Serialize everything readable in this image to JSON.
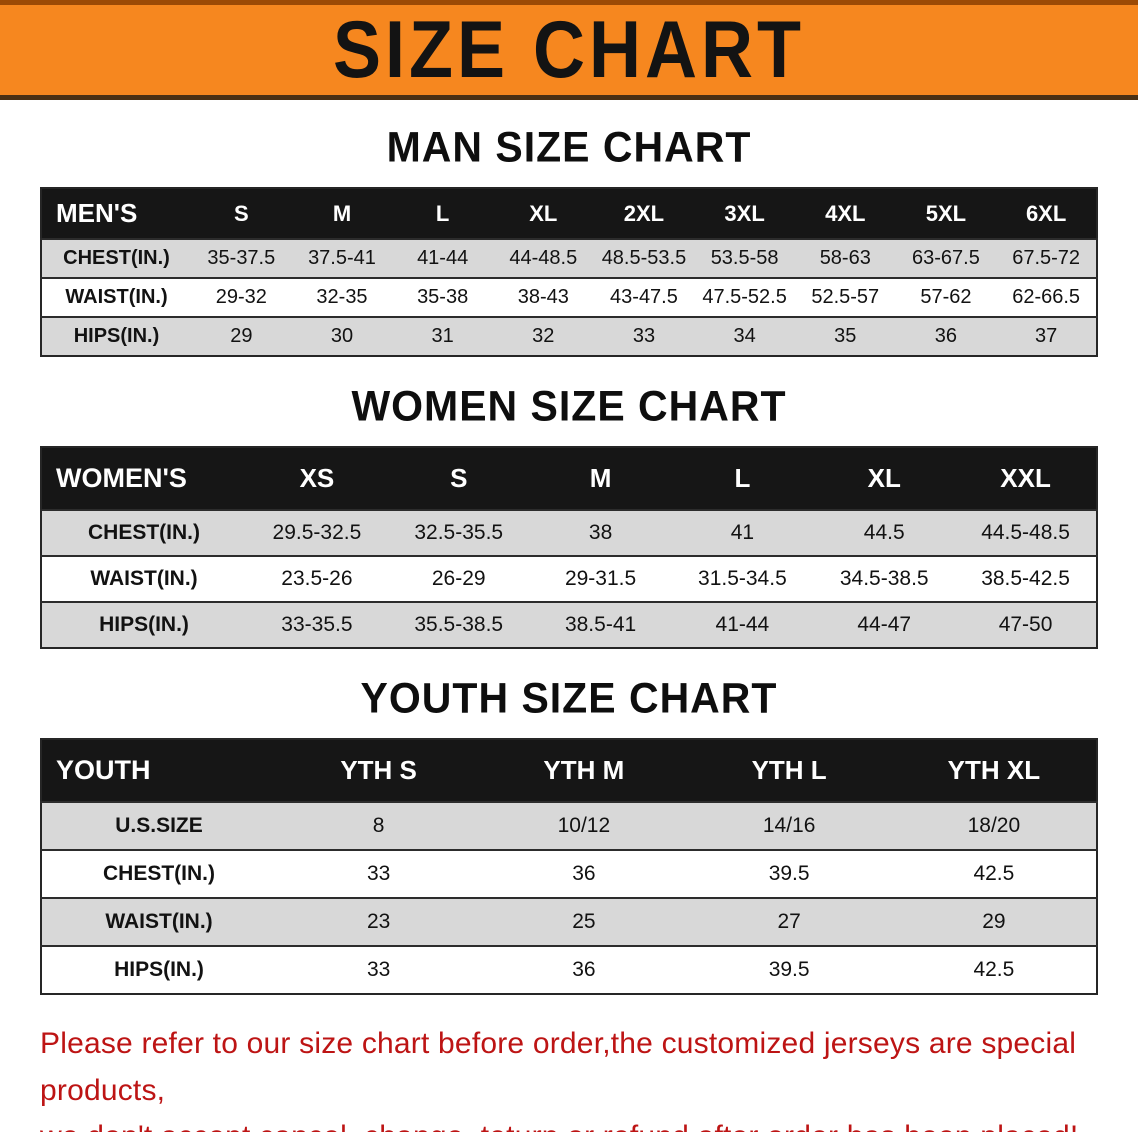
{
  "banner": {
    "title": "SIZE CHART",
    "bg_color": "#f6871f",
    "text_color": "#131313"
  },
  "colors": {
    "table_header_bg": "#161616",
    "table_header_text": "#ffffff",
    "row_stripe_gray": "#d8d8d8",
    "footer_text_red": "#bd1414"
  },
  "men": {
    "heading": "MAN SIZE CHART",
    "header": [
      "MEN'S",
      "S",
      "M",
      "L",
      "XL",
      "2XL",
      "3XL",
      "4XL",
      "5XL",
      "6XL"
    ],
    "rows": [
      [
        "CHEST(IN.)",
        "35-37.5",
        "37.5-41",
        "41-44",
        "44-48.5",
        "48.5-53.5",
        "53.5-58",
        "58-63",
        "63-67.5",
        "67.5-72"
      ],
      [
        "WAIST(IN.)",
        "29-32",
        "32-35",
        "35-38",
        "38-43",
        "43-47.5",
        "47.5-52.5",
        "52.5-57",
        "57-62",
        "62-66.5"
      ],
      [
        "HIPS(IN.)",
        "29",
        "30",
        "31",
        "32",
        "33",
        "34",
        "35",
        "36",
        "37"
      ]
    ]
  },
  "women": {
    "heading": "WOMEN SIZE CHART",
    "header": [
      "WOMEN'S",
      "XS",
      "S",
      "M",
      "L",
      "XL",
      "XXL"
    ],
    "rows": [
      [
        "CHEST(IN.)",
        "29.5-32.5",
        "32.5-35.5",
        "38",
        "41",
        "44.5",
        "44.5-48.5"
      ],
      [
        "WAIST(IN.)",
        "23.5-26",
        "26-29",
        "29-31.5",
        "31.5-34.5",
        "34.5-38.5",
        "38.5-42.5"
      ],
      [
        "HIPS(IN.)",
        "33-35.5",
        "35.5-38.5",
        "38.5-41",
        "41-44",
        "44-47",
        "47-50"
      ]
    ]
  },
  "youth": {
    "heading": "YOUTH SIZE CHART",
    "header": [
      "YOUTH",
      "YTH S",
      "YTH M",
      "YTH L",
      "YTH XL"
    ],
    "rows": [
      [
        "U.S.SIZE",
        "8",
        "10/12",
        "14/16",
        "18/20"
      ],
      [
        "CHEST(IN.)",
        "33",
        "36",
        "39.5",
        "42.5"
      ],
      [
        "WAIST(IN.)",
        "23",
        "25",
        "27",
        "29"
      ],
      [
        "HIPS(IN.)",
        "33",
        "36",
        "39.5",
        "42.5"
      ]
    ]
  },
  "footer": {
    "line1": "Please refer to our size chart before order,the customized jerseys are special products,",
    "line2": "we don't accept cancel, change, teturn or refund after order has been placed!"
  }
}
